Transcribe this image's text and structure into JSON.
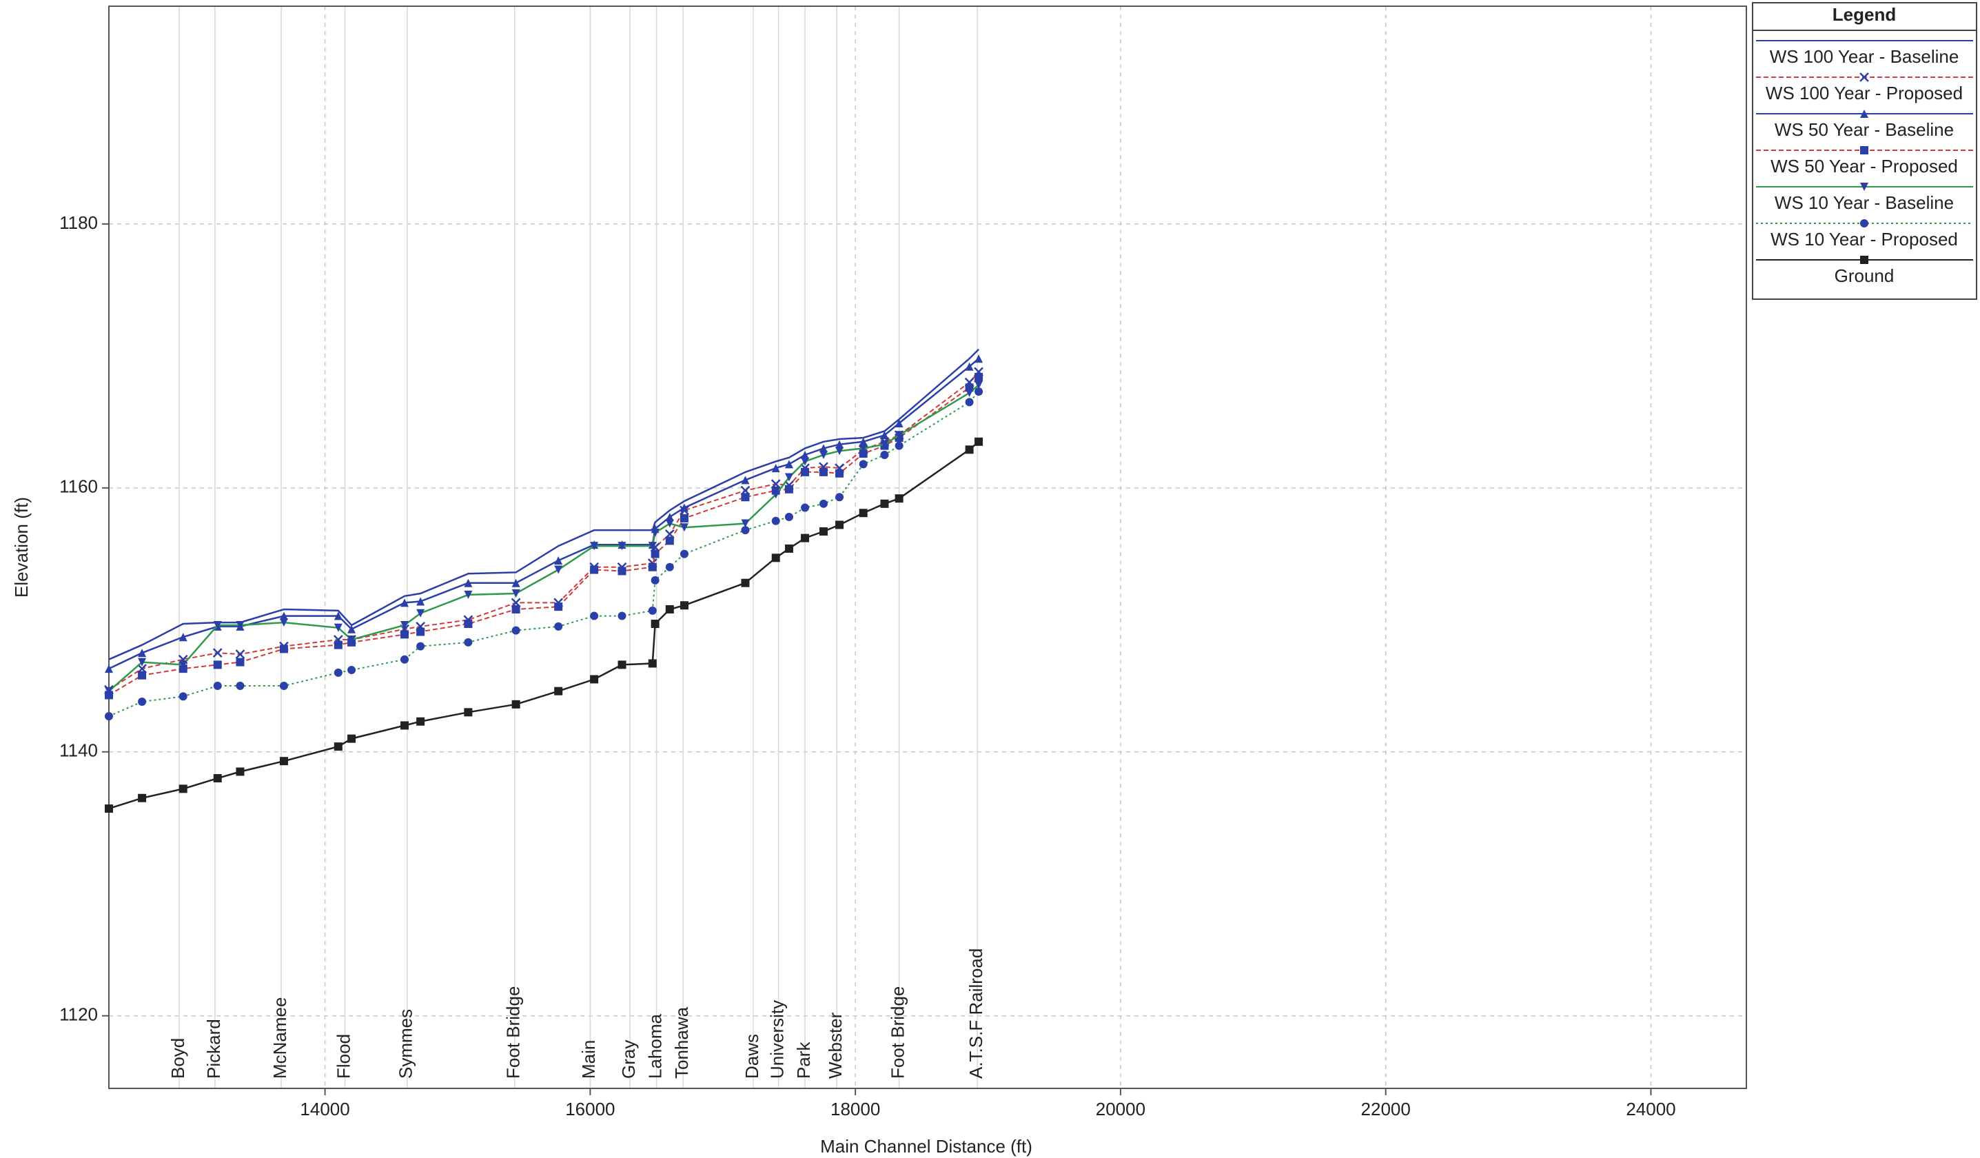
{
  "chart_data": {
    "type": "line",
    "xlabel": "Main Channel Distance (ft)",
    "ylabel": "Elevation (ft)",
    "legend_title": "Legend",
    "legend_position": "right",
    "grid": true,
    "xlim": [
      12370,
      24720
    ],
    "ylim": [
      1114.5,
      1196.5
    ],
    "xticks": [
      14000,
      16000,
      18000,
      20000,
      22000,
      24000
    ],
    "yticks": [
      1120,
      1140,
      1160,
      1180
    ],
    "x": [
      12370,
      12620,
      12930,
      13190,
      13360,
      13690,
      14100,
      14200,
      14600,
      14720,
      15080,
      15440,
      15760,
      16030,
      16240,
      16470,
      16490,
      16600,
      16710,
      17170,
      17400,
      17500,
      17620,
      17760,
      17880,
      18060,
      18220,
      18330,
      18860,
      18930
    ],
    "series": [
      {
        "name": "WS  100 Year - Baseline",
        "color": "#2b3fa8",
        "dash": "solid",
        "marker": "none",
        "values": [
          1147.0,
          1148.1,
          1149.7,
          1149.8,
          1149.8,
          1150.8,
          1150.7,
          1149.6,
          1151.8,
          1152.0,
          1153.5,
          1153.6,
          1155.6,
          1156.8,
          1156.8,
          1156.8,
          1157.4,
          1158.3,
          1159.0,
          1161.2,
          1162.0,
          1162.3,
          1163.0,
          1163.5,
          1163.7,
          1163.8,
          1164.3,
          1165.2,
          1169.8,
          1170.5
        ]
      },
      {
        "name": "WS  100 Year - Proposed",
        "color": "#d03a3a",
        "dash": "dashed",
        "marker": "x",
        "values": [
          1144.7,
          1146.3,
          1147.0,
          1147.5,
          1147.4,
          1148.0,
          1148.5,
          1148.5,
          1149.3,
          1149.5,
          1150.0,
          1151.3,
          1151.3,
          1154.0,
          1154.0,
          1154.3,
          1155.5,
          1156.5,
          1158.3,
          1159.8,
          1160.3,
          1160.2,
          1161.5,
          1161.6,
          1161.5,
          1162.9,
          1163.5,
          1164.0,
          1168.0,
          1168.8
        ]
      },
      {
        "name": "WS  50 Year - Baseline",
        "color": "#2b3fa8",
        "dash": "solid",
        "marker": "triangle-up",
        "values": [
          1146.3,
          1147.5,
          1148.7,
          1149.5,
          1149.5,
          1150.3,
          1150.3,
          1149.3,
          1151.3,
          1151.4,
          1152.8,
          1152.8,
          1154.5,
          1155.7,
          1155.7,
          1155.7,
          1156.9,
          1157.8,
          1158.5,
          1160.6,
          1161.5,
          1161.8,
          1162.5,
          1163.0,
          1163.3,
          1163.5,
          1164.0,
          1164.9,
          1169.2,
          1169.8
        ]
      },
      {
        "name": "WS  50 Year - Proposed",
        "color": "#d03a3a",
        "dash": "dashed",
        "marker": "square",
        "values": [
          1144.3,
          1145.8,
          1146.3,
          1146.6,
          1146.8,
          1147.8,
          1148.1,
          1148.3,
          1148.9,
          1149.1,
          1149.7,
          1150.8,
          1151.0,
          1153.8,
          1153.7,
          1154.0,
          1155.0,
          1156.0,
          1157.7,
          1159.3,
          1159.8,
          1159.9,
          1161.2,
          1161.2,
          1161.1,
          1162.6,
          1163.2,
          1163.8,
          1167.6,
          1168.4
        ]
      },
      {
        "name": "WS  10 Year - Baseline",
        "color": "#2e9a4a",
        "dash": "solid",
        "marker": "triangle-down",
        "values": [
          1144.6,
          1146.8,
          1146.6,
          1149.6,
          1149.6,
          1149.8,
          1149.4,
          1148.5,
          1149.6,
          1150.5,
          1151.9,
          1152.0,
          1153.8,
          1155.6,
          1155.6,
          1155.6,
          1156.6,
          1157.3,
          1157.0,
          1157.3,
          1159.5,
          1160.8,
          1162.0,
          1162.5,
          1162.8,
          1163.0,
          1163.3,
          1164.0,
          1167.2,
          1167.8
        ]
      },
      {
        "name": "WS  10 Year - Proposed",
        "color": "#2e9a4a",
        "dash": "dotted",
        "marker": "circle",
        "values": [
          1142.7,
          1143.8,
          1144.2,
          1145.0,
          1145.0,
          1145.0,
          1146.0,
          1146.2,
          1147.0,
          1148.0,
          1148.3,
          1149.2,
          1149.5,
          1150.3,
          1150.3,
          1150.7,
          1153.0,
          1154.0,
          1155.0,
          1156.8,
          1157.5,
          1157.8,
          1158.5,
          1158.8,
          1159.3,
          1161.8,
          1162.5,
          1163.2,
          1166.5,
          1167.3
        ]
      },
      {
        "name": "Ground",
        "color": "#222222",
        "dash": "solid",
        "marker": "square",
        "values": [
          1135.7,
          1136.5,
          1137.2,
          1138.0,
          1138.5,
          1139.3,
          1140.4,
          1141.0,
          1142.0,
          1142.3,
          1143.0,
          1143.6,
          1144.6,
          1145.5,
          1146.6,
          1146.7,
          1149.7,
          1150.8,
          1151.1,
          1152.8,
          1154.7,
          1155.4,
          1156.2,
          1156.7,
          1157.2,
          1158.1,
          1158.8,
          1159.2,
          1162.9,
          1163.5
        ]
      }
    ],
    "annotations": [
      {
        "text": "Boyd",
        "x": 12900
      },
      {
        "text": "Pickard",
        "x": 13170
      },
      {
        "text": "McNamee",
        "x": 13670
      },
      {
        "text": "Flood",
        "x": 14150
      },
      {
        "text": "Symmes",
        "x": 14620
      },
      {
        "text": "Foot Bridge",
        "x": 15430
      },
      {
        "text": "Main",
        "x": 16000
      },
      {
        "text": "Gray",
        "x": 16300
      },
      {
        "text": "Lahoma",
        "x": 16500
      },
      {
        "text": "Tonhawa",
        "x": 16700
      },
      {
        "text": "Daws",
        "x": 17230
      },
      {
        "text": "University",
        "x": 17420
      },
      {
        "text": "Park",
        "x": 17620
      },
      {
        "text": "Webster",
        "x": 17860
      },
      {
        "text": "Foot Bridge",
        "x": 18330
      },
      {
        "text": "A.T.S.F Railroad",
        "x": 18920
      }
    ]
  }
}
